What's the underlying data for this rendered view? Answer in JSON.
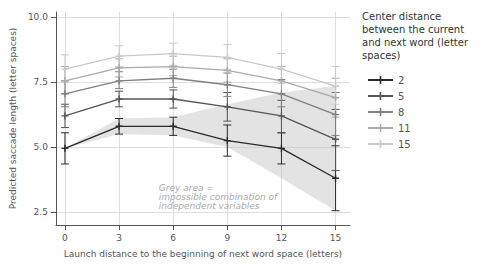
{
  "chart_data": {
    "type": "line",
    "xlabel": "Launch distance to the beginning of next word space (letters)",
    "ylabel": "Predicted saccade length (letter spaces)",
    "x": [
      0,
      3,
      6,
      9,
      12,
      15
    ],
    "xlim": [
      -0.5,
      15.8
    ],
    "ylim": [
      2.0,
      10.2
    ],
    "xticks": [
      0,
      3,
      6,
      9,
      12,
      15
    ],
    "yticks": [
      2.5,
      {
        "value": 5.0,
        "label": "5.0"
      },
      7.5,
      {
        "value": 10.0,
        "label": "10.0"
      }
    ],
    "grid": true,
    "marker": "plus",
    "legend_title": "Center distance\nbetween the current\nand next word (letter\nspaces)",
    "series": [
      {
        "name": "2",
        "color": "#2a2a2a",
        "values": [
          4.95,
          5.8,
          5.8,
          5.25,
          4.95,
          3.8
        ],
        "ci_lower": [
          4.35,
          5.5,
          5.45,
          4.65,
          4.35,
          2.55
        ],
        "ci_upper": [
          5.55,
          6.1,
          6.15,
          5.85,
          5.55,
          5.05
        ]
      },
      {
        "name": "5",
        "color": "#555555",
        "values": [
          6.2,
          6.85,
          6.85,
          6.55,
          6.2,
          5.3
        ],
        "ci_lower": [
          5.75,
          6.55,
          6.5,
          6.0,
          5.55,
          4.1
        ],
        "ci_upper": [
          6.65,
          7.15,
          7.2,
          7.1,
          6.8,
          6.45
        ]
      },
      {
        "name": "8",
        "color": "#808080",
        "values": [
          7.05,
          7.55,
          7.65,
          7.4,
          7.05,
          6.25
        ],
        "ci_lower": [
          6.55,
          7.25,
          7.3,
          6.95,
          6.55,
          5.45
        ],
        "ci_upper": [
          7.55,
          7.9,
          8.0,
          7.85,
          7.6,
          7.1
        ]
      },
      {
        "name": "11",
        "color": "#aaaaaa",
        "values": [
          7.55,
          8.05,
          8.1,
          7.95,
          7.55,
          6.9
        ],
        "ci_lower": [
          7.05,
          7.7,
          7.75,
          7.5,
          7.05,
          6.15
        ],
        "ci_upper": [
          8.1,
          8.4,
          8.5,
          8.4,
          8.1,
          7.65
        ]
      },
      {
        "name": "15",
        "color": "#c8c8c8",
        "values": [
          8.0,
          8.5,
          8.6,
          8.45,
          8.0,
          7.35
        ],
        "ci_lower": [
          7.5,
          8.1,
          8.15,
          8.0,
          7.45,
          6.65
        ],
        "ci_upper": [
          8.55,
          8.9,
          9.0,
          8.95,
          8.6,
          8.1
        ]
      }
    ],
    "shaded_region": {
      "x": [
        0,
        3,
        6,
        9,
        12,
        15
      ],
      "lower": [
        4.95,
        5.5,
        5.45,
        5.0,
        3.8,
        2.55
      ],
      "upper": [
        4.95,
        6.1,
        6.15,
        6.65,
        7.1,
        7.35
      ],
      "color": "#c0c0c0"
    },
    "annotations": [
      {
        "text": "Grey area =\nimpossible combination of\nindependent variables",
        "x": 5.2,
        "y": 2.55
      }
    ]
  }
}
